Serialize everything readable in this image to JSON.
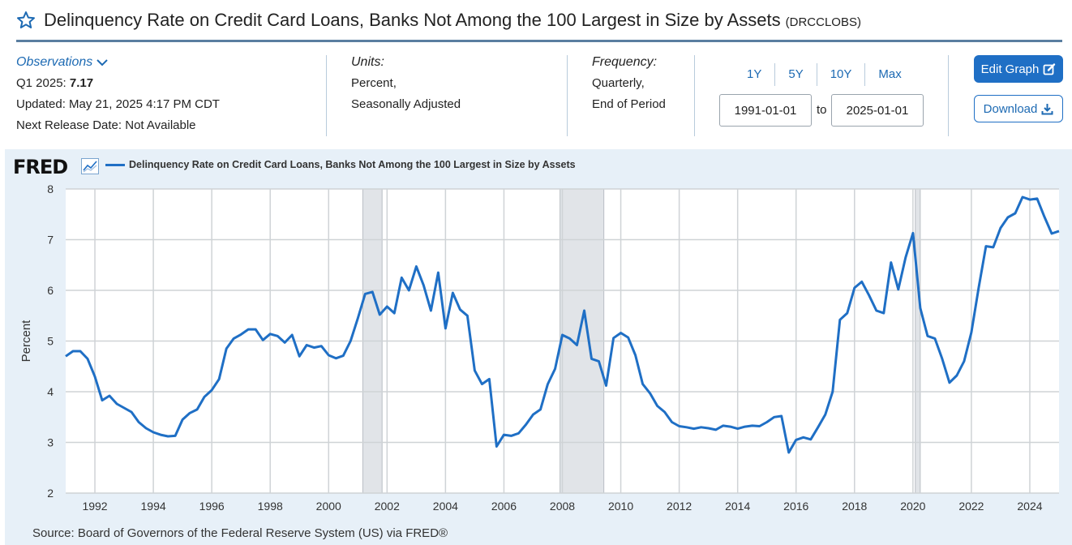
{
  "header": {
    "title": "Delinquency Rate on Credit Card Loans, Banks Not Among the 100 Largest in Size by Assets",
    "series_id": "(DRCCLOBS)"
  },
  "observations": {
    "link_label": "Observations",
    "latest_period": "Q1 2025:",
    "latest_value": "7.17",
    "updated": "Updated: May 21, 2025 4:17 PM CDT",
    "next_release": "Next Release Date: Not Available"
  },
  "units": {
    "label": "Units:",
    "line1": "Percent,",
    "line2": "Seasonally Adjusted"
  },
  "frequency": {
    "label": "Frequency:",
    "line1": "Quarterly,",
    "line2": "End of Period"
  },
  "range": {
    "links": [
      "1Y",
      "5Y",
      "10Y",
      "Max"
    ],
    "start": "1991-01-01",
    "to_label": "to",
    "end": "2025-01-01"
  },
  "buttons": {
    "edit": "Edit Graph",
    "download": "Download"
  },
  "chart": {
    "logo_text": "FRED",
    "legend": "Delinquency Rate on Credit Card Loans, Banks Not Among the 100 Largest in Size by Assets",
    "source": "Source: Board of Governors of the Federal Reserve System (US) via FRED®"
  },
  "colors": {
    "accent": "#1f6fc5",
    "line": "#1f6fc5",
    "recession": "#e1e4e8",
    "panel": "#e7f0f8"
  },
  "chart_data": {
    "type": "line",
    "title": "Delinquency Rate on Credit Card Loans, Banks Not Among the 100 Largest in Size by Assets",
    "xlabel": "",
    "ylabel": "Percent",
    "ylim": [
      2,
      8
    ],
    "xlim": [
      1991.0,
      2025.0
    ],
    "yticks": [
      2,
      3,
      4,
      5,
      6,
      7,
      8
    ],
    "xticks": [
      1992,
      1994,
      1996,
      1998,
      2000,
      2002,
      2004,
      2006,
      2008,
      2010,
      2012,
      2014,
      2016,
      2018,
      2020,
      2022,
      2024
    ],
    "grid": true,
    "recessions": [
      [
        2001.17,
        2001.83
      ],
      [
        2007.92,
        2009.42
      ],
      [
        2020.08,
        2020.25
      ]
    ],
    "series": [
      {
        "name": "DRCCLOBS",
        "start_year": 1991.0,
        "step": 0.25,
        "values": [
          4.7,
          4.8,
          4.8,
          4.65,
          4.3,
          3.83,
          3.92,
          3.76,
          3.68,
          3.6,
          3.4,
          3.28,
          3.2,
          3.15,
          3.12,
          3.13,
          3.45,
          3.58,
          3.65,
          3.9,
          4.03,
          4.25,
          4.85,
          5.05,
          5.13,
          5.23,
          5.23,
          5.02,
          5.14,
          5.1,
          4.97,
          5.12,
          4.7,
          4.92,
          4.87,
          4.9,
          4.72,
          4.66,
          4.71,
          5.0,
          5.45,
          5.93,
          5.97,
          5.52,
          5.68,
          5.55,
          6.25,
          6.0,
          6.47,
          6.1,
          5.6,
          6.35,
          5.25,
          5.95,
          5.62,
          5.5,
          4.42,
          4.15,
          4.25,
          2.92,
          3.15,
          3.13,
          3.18,
          3.35,
          3.55,
          3.65,
          4.15,
          4.45,
          5.12,
          5.05,
          4.92,
          5.6,
          4.65,
          4.6,
          4.12,
          5.06,
          5.16,
          5.07,
          4.72,
          4.15,
          3.97,
          3.72,
          3.6,
          3.4,
          3.32,
          3.3,
          3.27,
          3.3,
          3.28,
          3.25,
          3.33,
          3.31,
          3.27,
          3.31,
          3.33,
          3.32,
          3.4,
          3.5,
          3.52,
          2.8,
          3.05,
          3.1,
          3.06,
          3.3,
          3.55,
          4.0,
          5.42,
          5.55,
          6.05,
          6.17,
          5.9,
          5.6,
          5.55,
          6.55,
          6.02,
          6.65,
          7.13,
          5.65,
          5.1,
          5.05,
          4.65,
          4.18,
          4.32,
          4.6,
          5.17,
          6.05,
          6.87,
          6.85,
          7.23,
          7.44,
          7.52,
          7.84,
          7.79,
          7.81,
          7.45,
          7.12,
          7.17
        ]
      }
    ]
  }
}
